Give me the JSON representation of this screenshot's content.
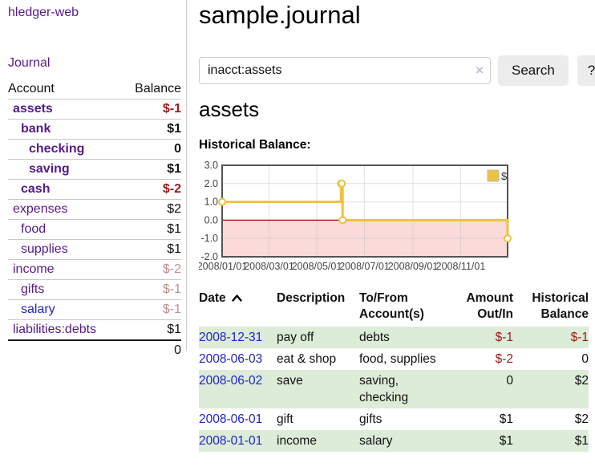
{
  "sidebar": {
    "brand": "hledger-web",
    "nav": [
      {
        "label": "Journal"
      }
    ],
    "accounts_table": {
      "headers": [
        "Account",
        "Balance"
      ],
      "rows": [
        {
          "name": "assets",
          "depth": 0,
          "bold": true,
          "balance": "$-1",
          "neg": "strong"
        },
        {
          "name": "bank",
          "depth": 1,
          "bold": true,
          "balance": "$1"
        },
        {
          "name": "checking",
          "depth": 2,
          "bold": true,
          "balance": "0"
        },
        {
          "name": "saving",
          "depth": 2,
          "bold": true,
          "balance": "$1"
        },
        {
          "name": "cash",
          "depth": 1,
          "bold": true,
          "balance": "$-2",
          "neg": "strong"
        },
        {
          "name": "expenses",
          "depth": 0,
          "bold": false,
          "balance": "$2"
        },
        {
          "name": "food",
          "depth": 1,
          "bold": false,
          "balance": "$1"
        },
        {
          "name": "supplies",
          "depth": 1,
          "bold": false,
          "balance": "$1"
        },
        {
          "name": "income",
          "depth": 0,
          "bold": false,
          "balance": "$-2",
          "neg": "faded"
        },
        {
          "name": "gifts",
          "depth": 1,
          "bold": false,
          "balance": "$-1",
          "neg": "faded"
        },
        {
          "name": "salary",
          "depth": 1,
          "bold": false,
          "balance": "$-1",
          "neg": "faded",
          "unvisited": true
        },
        {
          "name": "liabilities:debts",
          "depth": 0,
          "bold": false,
          "balance": "$1"
        }
      ],
      "total": "0"
    }
  },
  "header": {
    "title": "sample.journal"
  },
  "search": {
    "value": "inacct:assets",
    "clear_icon": "×",
    "button": "Search",
    "help_button": "?"
  },
  "account_page": {
    "heading": "assets",
    "chart_title": "Historical Balance:"
  },
  "chart_data": {
    "type": "line",
    "title": "Historical Balance:",
    "step": true,
    "xlim": [
      "2008-01-01",
      "2008-12-31"
    ],
    "ylim": [
      -2.0,
      3.0
    ],
    "y_ticks": [
      "3.0",
      "2.0",
      "1.0",
      "0.0",
      "-1.0",
      "-2.0"
    ],
    "x_ticks": [
      "2008/01/01",
      "2008/03/01",
      "2008/05/01",
      "2008/07/01",
      "2008/09/01",
      "2008/11/01"
    ],
    "series": [
      {
        "name": "$",
        "color": "#edc240",
        "points": [
          [
            "2008-01-01",
            1
          ],
          [
            "2008-06-01",
            2
          ],
          [
            "2008-06-02",
            2
          ],
          [
            "2008-06-03",
            0
          ],
          [
            "2008-12-31",
            -1
          ]
        ]
      }
    ],
    "negative_region": {
      "below": 0,
      "fill": "#fbdada",
      "line_color": "#991111"
    },
    "legend": "$",
    "legend_position": "top-right",
    "grid": true
  },
  "register": {
    "headers": [
      {
        "label": "Date",
        "sort": "ascending"
      },
      {
        "label": "Description"
      },
      {
        "label": "To/From Account(s)"
      },
      {
        "label": "Amount Out/In"
      },
      {
        "label": "Historical Balance"
      }
    ],
    "rows": [
      {
        "date": "2008-12-31",
        "description": "pay off",
        "accounts": "debts",
        "amount": "$-1",
        "amount_negative": true,
        "balance": "$-1",
        "balance_negative": true
      },
      {
        "date": "2008-06-03",
        "description": "eat & shop",
        "accounts": "food, supplies",
        "amount": "$-2",
        "amount_negative": true,
        "balance": "0",
        "balance_negative": false
      },
      {
        "date": "2008-06-02",
        "description": "save",
        "accounts": "saving,\nchecking",
        "amount": "0",
        "amount_negative": false,
        "balance": "$2",
        "balance_negative": false
      },
      {
        "date": "2008-06-01",
        "description": "gift",
        "accounts": "gifts",
        "amount": "$1",
        "amount_negative": false,
        "balance": "$2",
        "balance_negative": false
      },
      {
        "date": "2008-01-01",
        "description": "income",
        "accounts": "salary",
        "amount": "$1",
        "amount_negative": false,
        "balance": "$1",
        "balance_negative": false
      }
    ]
  },
  "colors": {
    "accent_purple": "#551a8b",
    "link_blue": "#2222cc",
    "negative_strong": "#a31818",
    "negative_faded": "#bc8f8f",
    "row_green": "#dcecd8",
    "chart_line": "#edc240",
    "chart_negative_fill": "#fbdada",
    "chart_zero_line": "#991111",
    "chart_border": "#545454"
  }
}
